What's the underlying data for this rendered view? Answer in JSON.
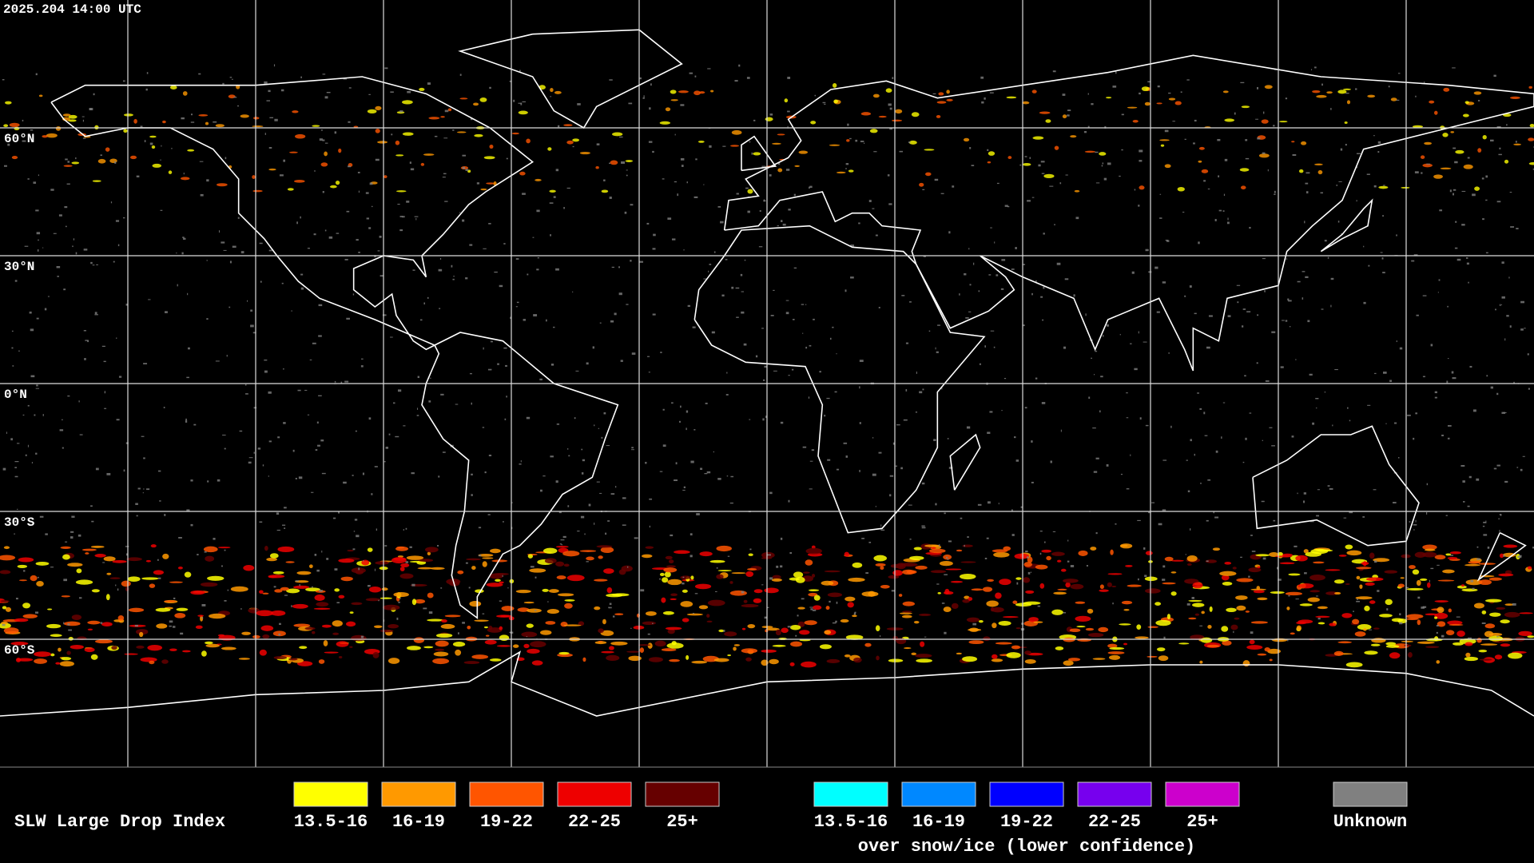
{
  "timestamp": "2025.204 14:00 UTC",
  "map": {
    "latitude_labels": [
      "60°N",
      "30°N",
      "0°N",
      "30°S",
      "60°S"
    ]
  },
  "legend": {
    "title": "SLW Large Drop Index",
    "groups": [
      {
        "items": [
          {
            "label": "13.5-16",
            "color": "#ffff00"
          },
          {
            "label": "16-19",
            "color": "#ff9900"
          },
          {
            "label": "19-22",
            "color": "#ff5500"
          },
          {
            "label": "22-25",
            "color": "#ee0000"
          },
          {
            "label": "25+",
            "color": "#660000"
          }
        ]
      },
      {
        "items": [
          {
            "label": "13.5-16",
            "color": "#00ffff"
          },
          {
            "label": "16-19",
            "color": "#0088ff"
          },
          {
            "label": "19-22",
            "color": "#0000ff"
          },
          {
            "label": "22-25",
            "color": "#7700ee"
          },
          {
            "label": "25+",
            "color": "#cc00cc"
          }
        ],
        "caption": "over snow/ice (lower confidence)"
      },
      {
        "items": [
          {
            "label": "Unknown",
            "color": "#808080"
          }
        ]
      }
    ]
  }
}
